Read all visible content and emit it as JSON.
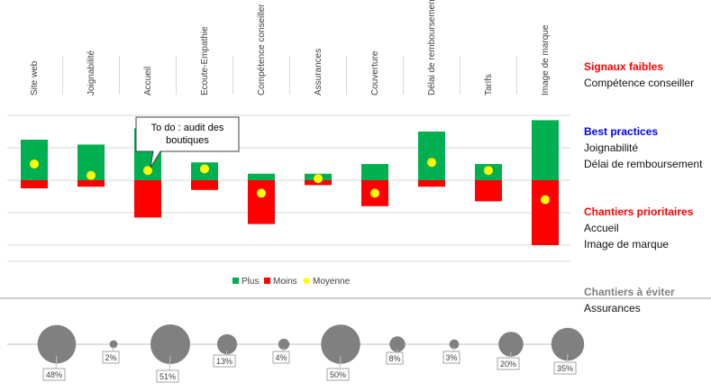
{
  "chart_data": {
    "type": "bar",
    "categories": [
      "Site web",
      "Joignabilité",
      "Accueil",
      "Ecoute-Empathie",
      "Compétence conseiller",
      "Assurances",
      "Couverture",
      "Délai de remboursement",
      "Tarifs",
      "Image de marque"
    ],
    "series": [
      {
        "name": "Plus",
        "color": "#00b050",
        "values": [
          25,
          22,
          32,
          11,
          4,
          4,
          10,
          30,
          10,
          37
        ]
      },
      {
        "name": "Moins",
        "color": "#ff0000",
        "values": [
          -5,
          -4,
          -23,
          -6,
          -27,
          -3,
          -16,
          -4,
          -13,
          -40
        ]
      },
      {
        "name": "Moyenne",
        "color": "#ffff00",
        "values": [
          10,
          3,
          6,
          7,
          -8,
          1,
          -8,
          11,
          6,
          -12
        ]
      }
    ],
    "ylim": [
      -45,
      40
    ],
    "grid": true,
    "legend_position": "bottom",
    "callout": {
      "text": "To do : audit des boutiques",
      "category": "Accueil"
    },
    "bubbles": {
      "values": [
        48,
        2,
        51,
        13,
        4,
        50,
        8,
        3,
        20,
        35
      ],
      "labels": [
        "48%",
        "2%",
        "51%",
        "13%",
        "4%",
        "50%",
        "8%",
        "3%",
        "20%",
        "35%"
      ],
      "color": "#808080"
    }
  },
  "legend": {
    "plus": "Plus",
    "moins": "Moins",
    "moyenne": "Moyenne"
  },
  "side_panel": {
    "signaux": {
      "heading": "Signaux faibles",
      "color": "#ff0000",
      "items": [
        "Compétence conseiller"
      ]
    },
    "best": {
      "heading": "Best practices",
      "color": "#0000ff",
      "items": [
        "Joignabilité",
        "Délai de remboursement"
      ]
    },
    "chantiers": {
      "heading": "Chantiers prioritaires",
      "color": "#ff0000",
      "items": [
        "Accueil",
        "Image de marque"
      ]
    },
    "eviter": {
      "heading": "Chantiers à éviter",
      "color": "#808080",
      "items": [
        "Assurances"
      ]
    }
  }
}
